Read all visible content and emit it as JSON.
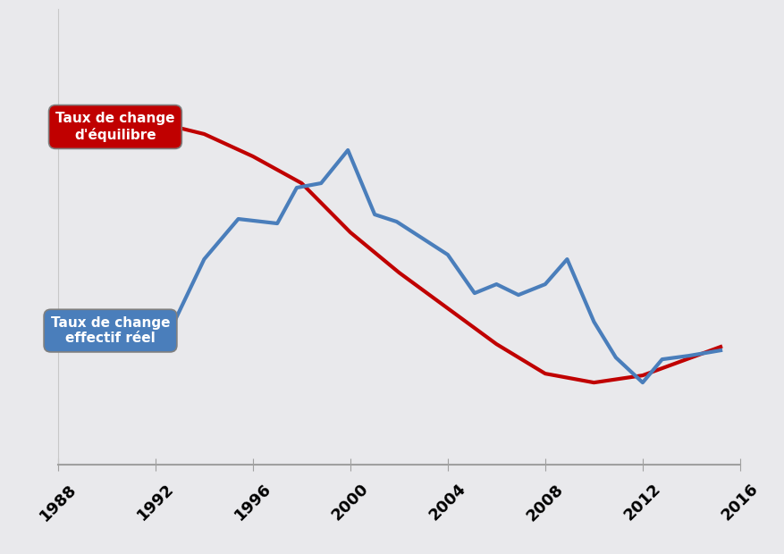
{
  "chart_data": {
    "type": "line",
    "series": [
      {
        "name": "Taux de change\nd'équilibre",
        "color": "#c00000",
        "x": [
          1992.8,
          1994,
          1996,
          1998,
          2000,
          2002,
          2004,
          2006,
          2008,
          2010,
          2012,
          2014,
          2015.2
        ],
        "values": [
          37.8,
          37,
          34.5,
          31.5,
          26,
          21.5,
          17.5,
          13.5,
          10.2,
          9.2,
          10,
          12,
          13.2
        ]
      },
      {
        "name": "Taux de change\neffectif réel",
        "color": "#4a7ebb",
        "x": [
          1992.6,
          1994,
          1995.4,
          1997,
          1997.8,
          1998.8,
          1999.9,
          2001,
          2001.9,
          2004,
          2005.1,
          2006,
          2006.9,
          2008,
          2008.9,
          2010,
          2010.9,
          2012,
          2012.8,
          2013.9,
          2015.2
        ],
        "values": [
          15,
          23,
          27.5,
          27,
          31,
          31.5,
          35.2,
          28,
          27.2,
          23.5,
          19.2,
          20.2,
          19,
          20.2,
          23,
          16,
          12,
          9.2,
          11.8,
          12.2,
          12.8
        ]
      }
    ],
    "xlim": [
      1988,
      2016
    ],
    "xticks": [
      1988,
      1992,
      1996,
      2000,
      2004,
      2008,
      2012,
      2016
    ],
    "ylim": [
      0,
      51
    ],
    "yticks": [],
    "tick_labels": "x",
    "grid": false
  }
}
